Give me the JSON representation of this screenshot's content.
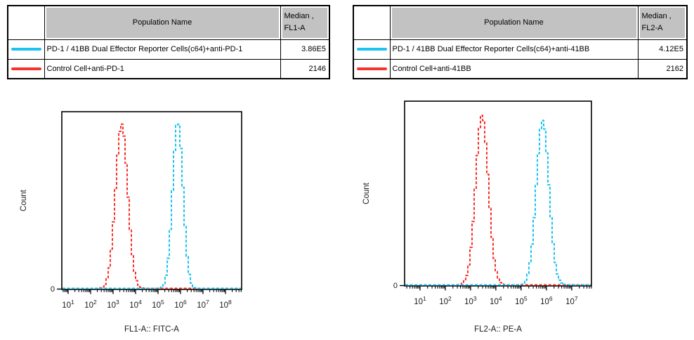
{
  "figure": {
    "background": "#ffffff"
  },
  "colors": {
    "series_cyan": "#1CC3F2",
    "series_red": "#F8322B",
    "table_header_gray": "#C2C2C2",
    "axis_black": "#000000"
  },
  "panels": [
    {
      "table": {
        "header": {
          "population": "Population Name",
          "median_line1": "Median ,",
          "median_line2": "FL1-A"
        },
        "rows": [
          {
            "swatch_color": "#1CC3F2",
            "name": "PD-1 / 41BB Dual Effector Reporter Cells(c64)+anti-PD-1",
            "median": "3.86E5"
          },
          {
            "swatch_color": "#F8322B",
            "name": "Control Cell+anti-PD-1",
            "median": "2146"
          }
        ]
      }
    },
    {
      "table": {
        "header": {
          "population": "Population Name",
          "median_line1": "Median ,",
          "median_line2": "FL2-A"
        },
        "rows": [
          {
            "swatch_color": "#1CC3F2",
            "name": "PD-1 / 41BB Dual Effector Reporter Cells(c64)+anti-41BB",
            "median": "4.12E5"
          },
          {
            "swatch_color": "#F8322B",
            "name": "Control Cell+anti-41BB",
            "median": "2162"
          }
        ]
      }
    }
  ],
  "chart_data": [
    {
      "type": "line",
      "subtype": "flow-cytometry-histogram",
      "title": "",
      "xlabel": "FL1-A:: FITC-A",
      "ylabel": "Count",
      "x_scale": "log10",
      "x_range_log10": [
        0.72,
        8.72
      ],
      "x_major_tick_exponents": [
        1,
        2,
        3,
        4,
        5,
        6,
        7,
        8
      ],
      "x_tick_label_format": "10^n",
      "y_origin_label": "0",
      "grid": false,
      "legend_position": "table-above",
      "series": [
        {
          "name": "PD-1 / 41BB Dual Effector Reporter Cells(c64)+anti-PD-1",
          "color": "#1CC3F2",
          "median": "3.86E5",
          "peak_center_log10": 5.88,
          "peak_center_value": 760000,
          "peak_height_frac": 0.94,
          "sigma_log10": 0.23,
          "line_style": "dashed"
        },
        {
          "name": "Control Cell+anti-PD-1",
          "color": "#F8322B",
          "median": "2146",
          "peak_center_log10": 3.38,
          "peak_center_value": 2400,
          "peak_height_frac": 0.925,
          "sigma_log10": 0.27,
          "line_style": "dashed"
        }
      ]
    },
    {
      "type": "line",
      "subtype": "flow-cytometry-histogram",
      "title": "",
      "xlabel": "FL2-A:: PE-A",
      "ylabel": "Count",
      "x_scale": "log10",
      "x_range_log10": [
        0.39,
        7.78
      ],
      "x_major_tick_exponents": [
        1,
        2,
        3,
        4,
        5,
        6,
        7
      ],
      "x_tick_label_format": "10^n",
      "y_origin_label": "0",
      "grid": false,
      "legend_position": "table-above",
      "series": [
        {
          "name": "PD-1 / 41BB Dual Effector Reporter Cells(c64)+anti-41BB",
          "color": "#1CC3F2",
          "median": "4.12E5",
          "peak_center_log10": 5.85,
          "peak_center_value": 710000,
          "peak_height_frac": 0.89,
          "sigma_log10": 0.25,
          "line_style": "dashed"
        },
        {
          "name": "Control Cell+anti-41BB",
          "color": "#F8322B",
          "median": "2162",
          "peak_center_log10": 3.45,
          "peak_center_value": 2800,
          "peak_height_frac": 0.92,
          "sigma_log10": 0.25,
          "line_style": "dashed"
        }
      ]
    }
  ]
}
